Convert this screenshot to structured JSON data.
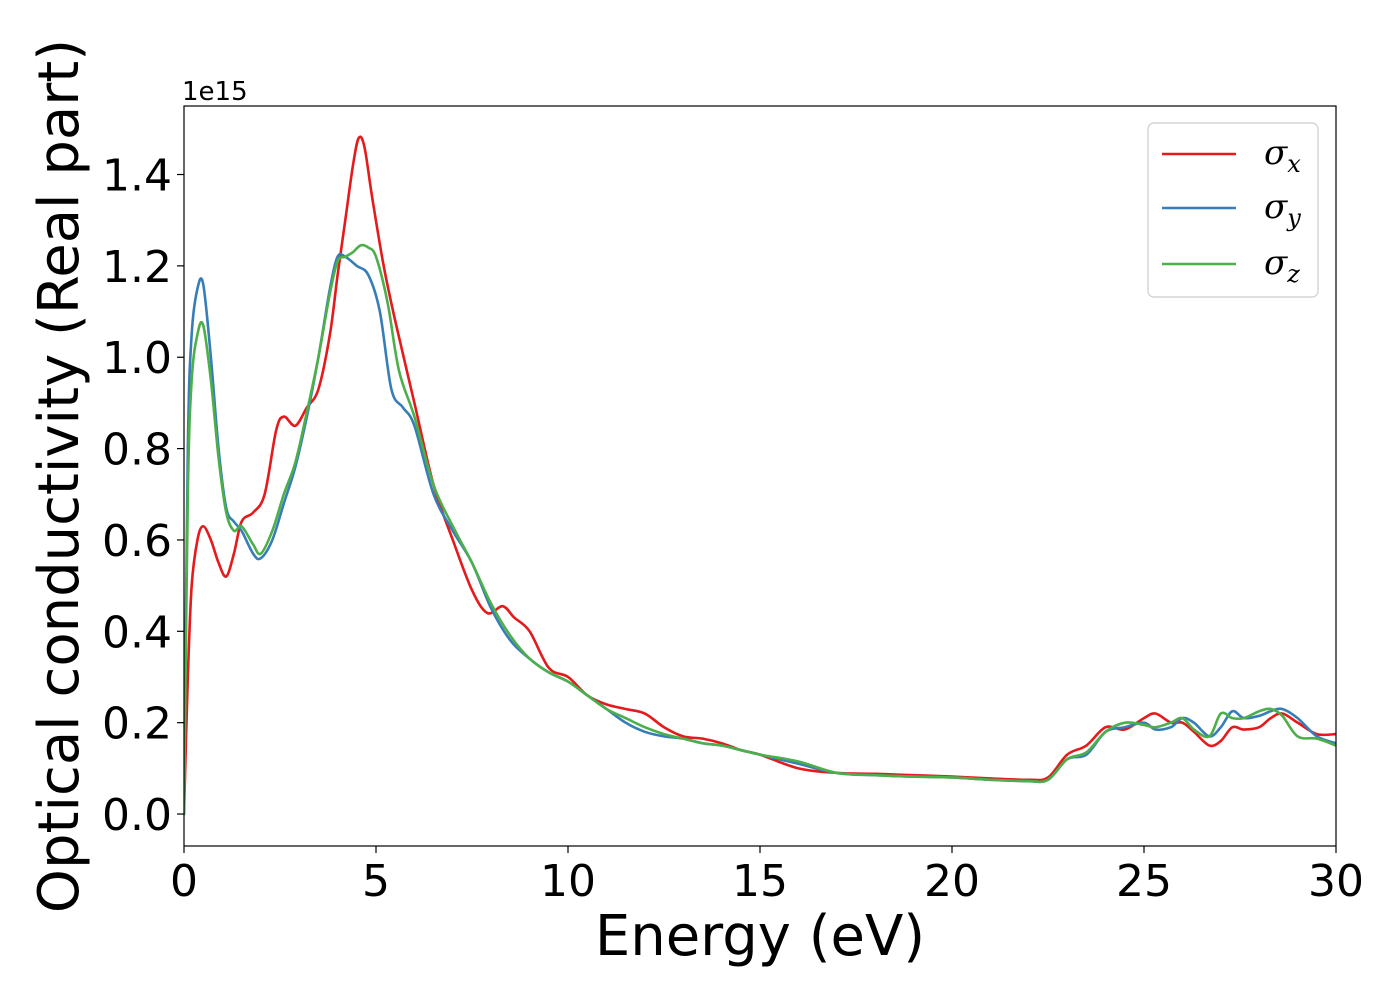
{
  "chart_data": {
    "type": "line",
    "title": "",
    "xlabel": "Energy (eV)",
    "ylabel": "Optical conductivity (Real part)",
    "y_offset_label": "1e15",
    "xlim": [
      0,
      30
    ],
    "ylim": [
      -0.07,
      1.55
    ],
    "xticks": [
      0,
      5,
      10,
      15,
      20,
      25,
      30
    ],
    "xtick_labels": [
      "0",
      "5",
      "10",
      "15",
      "20",
      "25",
      "30"
    ],
    "yticks": [
      0.0,
      0.2,
      0.4,
      0.6,
      0.8,
      1.0,
      1.2,
      1.4
    ],
    "ytick_labels": [
      "0.0",
      "0.2",
      "0.4",
      "0.6",
      "0.8",
      "1.0",
      "1.2",
      "1.4"
    ],
    "grid": false,
    "legend_position": "top-right",
    "series": [
      {
        "name": "σx",
        "symbol": "σ",
        "subscript": "x",
        "color": "#e41a1c",
        "x": [
          0,
          0.1,
          0.2,
          0.35,
          0.5,
          0.7,
          0.9,
          1.1,
          1.3,
          1.5,
          1.8,
          2.1,
          2.4,
          2.6,
          2.9,
          3.2,
          3.5,
          3.8,
          4.0,
          4.2,
          4.4,
          4.55,
          4.7,
          4.9,
          5.2,
          5.5,
          6.0,
          6.5,
          7.0,
          7.5,
          7.9,
          8.3,
          8.6,
          9.0,
          9.5,
          10.0,
          10.5,
          11.0,
          11.5,
          12.0,
          12.5,
          13.0,
          13.5,
          14.0,
          14.5,
          15.0,
          16.0,
          17.0,
          18.0,
          19.0,
          20.0,
          21.0,
          22.0,
          22.5,
          23.0,
          23.5,
          24.0,
          24.5,
          25.0,
          25.3,
          25.7,
          26.0,
          26.3,
          26.7,
          27.0,
          27.3,
          27.6,
          28.0,
          28.3,
          28.6,
          29.0,
          29.5,
          30.0
        ],
        "y": [
          0.0,
          0.3,
          0.5,
          0.6,
          0.63,
          0.6,
          0.55,
          0.52,
          0.57,
          0.64,
          0.66,
          0.7,
          0.84,
          0.87,
          0.85,
          0.89,
          0.93,
          1.05,
          1.18,
          1.3,
          1.42,
          1.48,
          1.46,
          1.35,
          1.2,
          1.08,
          0.9,
          0.72,
          0.6,
          0.49,
          0.44,
          0.455,
          0.43,
          0.4,
          0.32,
          0.3,
          0.26,
          0.24,
          0.23,
          0.22,
          0.19,
          0.17,
          0.165,
          0.155,
          0.14,
          0.13,
          0.1,
          0.09,
          0.088,
          0.085,
          0.082,
          0.078,
          0.075,
          0.08,
          0.13,
          0.15,
          0.19,
          0.185,
          0.21,
          0.22,
          0.2,
          0.2,
          0.18,
          0.15,
          0.16,
          0.19,
          0.185,
          0.19,
          0.21,
          0.22,
          0.2,
          0.175,
          0.175
        ]
      },
      {
        "name": "σy",
        "symbol": "σ",
        "subscript": "y",
        "color": "#377eb8",
        "x": [
          0,
          0.1,
          0.2,
          0.35,
          0.5,
          0.7,
          0.9,
          1.1,
          1.3,
          1.5,
          1.8,
          2.0,
          2.3,
          2.6,
          2.9,
          3.2,
          3.5,
          3.8,
          4.0,
          4.2,
          4.5,
          4.8,
          5.1,
          5.4,
          5.7,
          6.0,
          6.5,
          7.0,
          7.5,
          8.0,
          8.5,
          9.0,
          9.5,
          10.0,
          10.5,
          11.0,
          11.5,
          12.0,
          12.5,
          13.0,
          13.5,
          14.0,
          14.5,
          15.0,
          16.0,
          17.0,
          18.0,
          19.0,
          20.0,
          21.0,
          22.0,
          22.5,
          23.0,
          23.5,
          24.0,
          24.5,
          25.0,
          25.3,
          25.7,
          26.0,
          26.3,
          26.7,
          27.0,
          27.3,
          27.6,
          28.0,
          28.3,
          28.6,
          29.0,
          29.5,
          30.0
        ],
        "y": [
          0.0,
          0.8,
          1.05,
          1.15,
          1.16,
          1.0,
          0.8,
          0.67,
          0.64,
          0.62,
          0.57,
          0.56,
          0.6,
          0.68,
          0.76,
          0.87,
          1.0,
          1.15,
          1.22,
          1.22,
          1.2,
          1.18,
          1.1,
          0.93,
          0.89,
          0.85,
          0.7,
          0.62,
          0.55,
          0.45,
          0.38,
          0.34,
          0.31,
          0.29,
          0.26,
          0.23,
          0.2,
          0.18,
          0.17,
          0.165,
          0.155,
          0.15,
          0.14,
          0.13,
          0.11,
          0.09,
          0.085,
          0.082,
          0.08,
          0.075,
          0.072,
          0.075,
          0.12,
          0.13,
          0.18,
          0.19,
          0.2,
          0.185,
          0.19,
          0.21,
          0.2,
          0.17,
          0.19,
          0.225,
          0.21,
          0.215,
          0.225,
          0.23,
          0.21,
          0.17,
          0.155
        ]
      },
      {
        "name": "σz",
        "symbol": "σ",
        "subscript": "z",
        "color": "#4daf4a",
        "x": [
          0,
          0.1,
          0.2,
          0.35,
          0.5,
          0.7,
          0.9,
          1.1,
          1.3,
          1.5,
          1.8,
          2.0,
          2.3,
          2.6,
          2.9,
          3.2,
          3.5,
          3.8,
          4.0,
          4.2,
          4.4,
          4.6,
          4.8,
          5.0,
          5.3,
          5.6,
          6.0,
          6.5,
          7.0,
          7.5,
          8.0,
          8.5,
          9.0,
          9.5,
          10.0,
          10.5,
          11.0,
          11.5,
          12.0,
          12.5,
          13.0,
          13.5,
          14.0,
          14.5,
          15.0,
          16.0,
          17.0,
          18.0,
          19.0,
          20.0,
          21.0,
          22.0,
          22.5,
          23.0,
          23.5,
          24.0,
          24.5,
          25.0,
          25.3,
          25.7,
          26.0,
          26.3,
          26.7,
          27.0,
          27.3,
          27.6,
          28.0,
          28.3,
          28.6,
          29.0,
          29.5,
          30.0
        ],
        "y": [
          0.0,
          0.7,
          0.95,
          1.05,
          1.07,
          0.95,
          0.78,
          0.66,
          0.62,
          0.63,
          0.59,
          0.57,
          0.62,
          0.7,
          0.77,
          0.88,
          1.0,
          1.14,
          1.21,
          1.22,
          1.23,
          1.245,
          1.24,
          1.22,
          1.12,
          0.97,
          0.87,
          0.72,
          0.63,
          0.55,
          0.46,
          0.39,
          0.34,
          0.31,
          0.29,
          0.26,
          0.23,
          0.21,
          0.19,
          0.175,
          0.165,
          0.155,
          0.15,
          0.14,
          0.13,
          0.115,
          0.09,
          0.085,
          0.082,
          0.08,
          0.075,
          0.072,
          0.075,
          0.12,
          0.135,
          0.18,
          0.2,
          0.195,
          0.19,
          0.2,
          0.21,
          0.185,
          0.17,
          0.22,
          0.21,
          0.21,
          0.225,
          0.23,
          0.215,
          0.17,
          0.165,
          0.15
        ]
      }
    ]
  }
}
